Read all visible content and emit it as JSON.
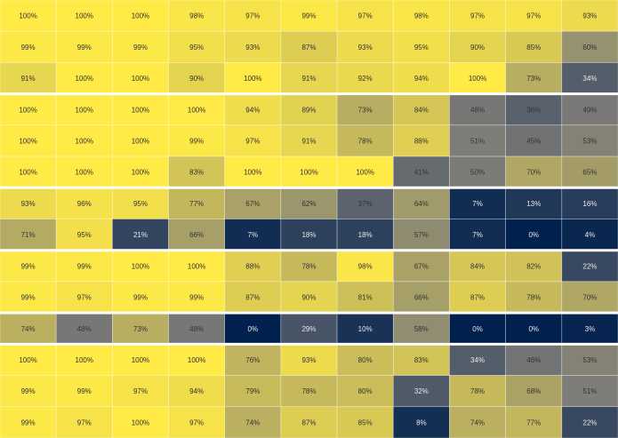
{
  "chart_data": {
    "type": "heatmap",
    "title": "",
    "xlabel": "",
    "ylabel": "",
    "value_unit": "%",
    "color_scale": {
      "low": "#00204d",
      "mid": "#7c7b78",
      "high": "#ffea46"
    },
    "row_groups": [
      3,
      3,
      2,
      2,
      1,
      3
    ],
    "rows": [
      [
        100,
        100,
        100,
        98,
        97,
        99,
        97,
        98,
        97,
        97,
        93
      ],
      [
        99,
        99,
        99,
        95,
        93,
        87,
        93,
        95,
        90,
        85,
        60
      ],
      [
        91,
        100,
        100,
        90,
        100,
        91,
        92,
        94,
        100,
        73,
        34
      ],
      [
        100,
        100,
        100,
        100,
        94,
        89,
        73,
        84,
        48,
        36,
        49
      ],
      [
        100,
        100,
        100,
        99,
        97,
        91,
        78,
        88,
        51,
        45,
        53
      ],
      [
        100,
        100,
        100,
        83,
        100,
        100,
        100,
        41,
        50,
        70,
        65
      ],
      [
        93,
        96,
        95,
        77,
        67,
        62,
        37,
        64,
        7,
        13,
        16
      ],
      [
        71,
        95,
        21,
        66,
        7,
        18,
        18,
        57,
        7,
        0,
        4
      ],
      [
        99,
        99,
        100,
        100,
        88,
        78,
        98,
        67,
        84,
        82,
        22
      ],
      [
        99,
        97,
        99,
        99,
        87,
        90,
        81,
        66,
        87,
        78,
        70
      ],
      [
        74,
        48,
        73,
        48,
        0,
        29,
        10,
        58,
        0,
        0,
        3
      ],
      [
        100,
        100,
        100,
        100,
        76,
        93,
        80,
        83,
        34,
        46,
        53
      ],
      [
        99,
        99,
        97,
        94,
        79,
        78,
        80,
        32,
        78,
        68,
        51
      ],
      [
        99,
        97,
        100,
        97,
        74,
        87,
        85,
        8,
        74,
        77,
        22
      ]
    ]
  }
}
